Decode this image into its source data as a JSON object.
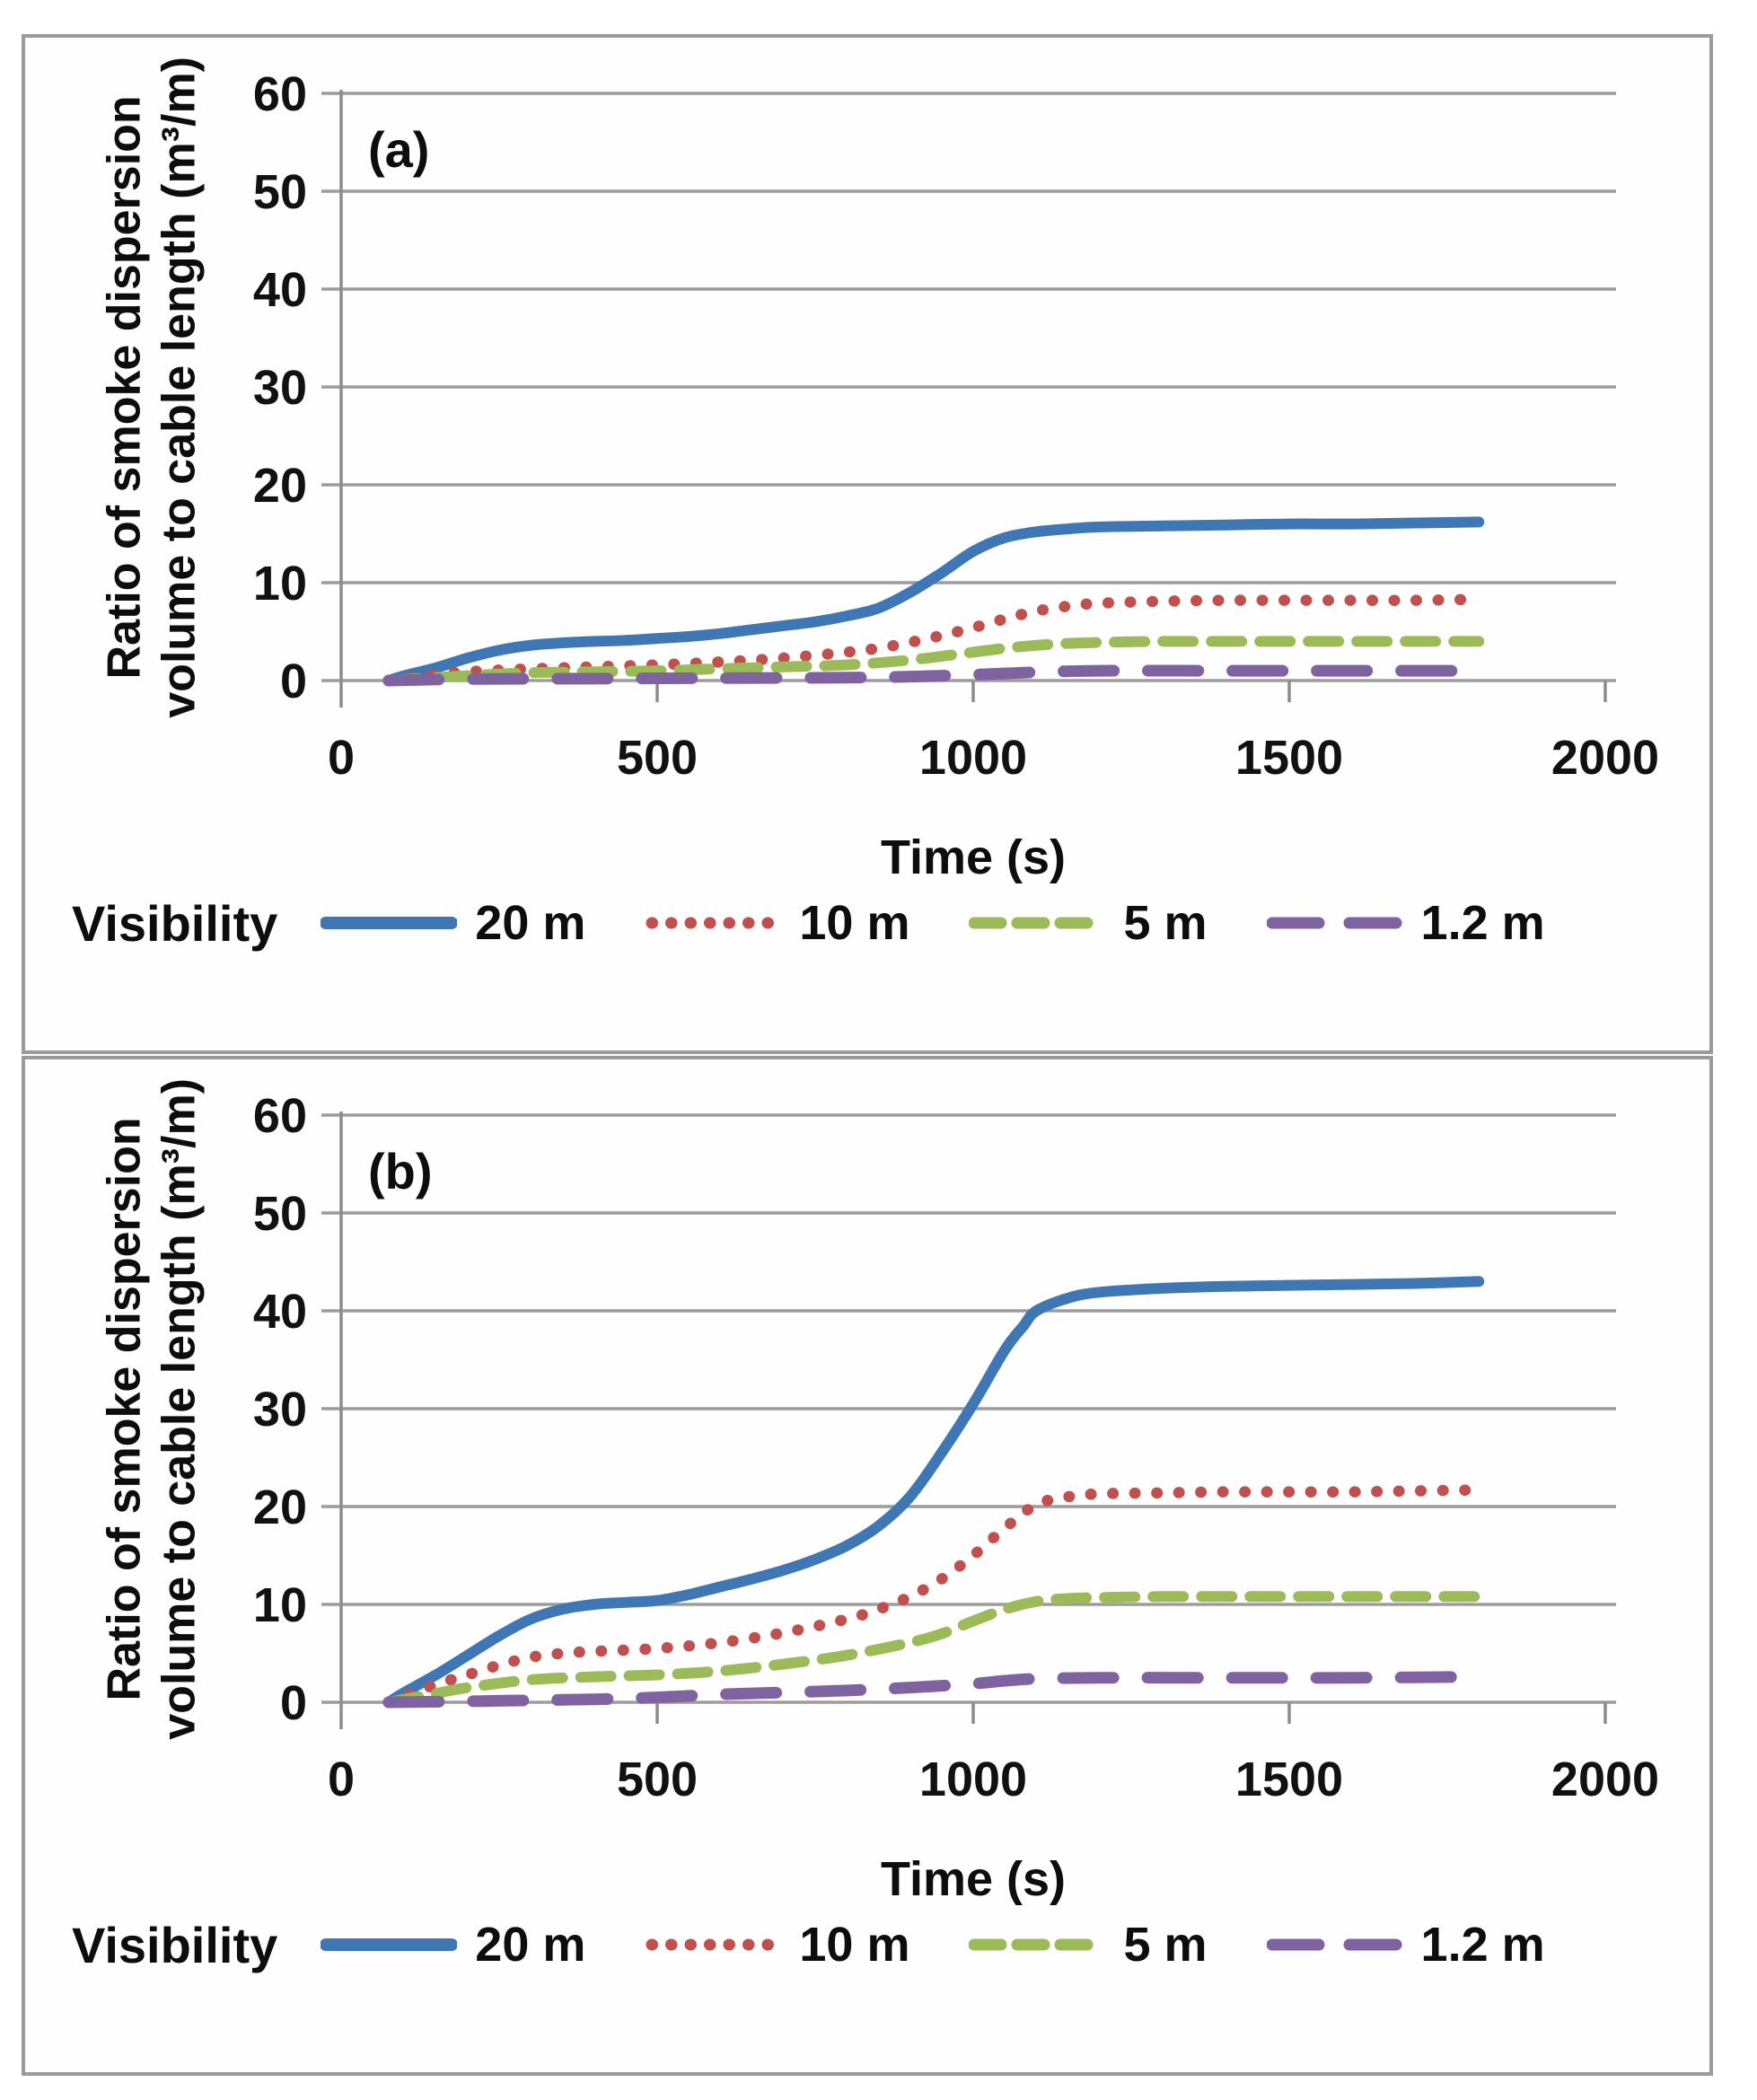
{
  "colors": {
    "grid": "#9c9c9c",
    "axis": "#8c8c8c",
    "text": "#111111",
    "panel_border": "#9a9a9a",
    "series_blue": "#3f76b4",
    "series_red": "#c0504d",
    "series_green": "#9bbb59",
    "series_purple": "#7f63a1"
  },
  "chart_data": [
    {
      "type": "line",
      "title": "(a)",
      "xlabel": "Time (s)",
      "ylabel_lines": [
        "Ratio of smoke dispersion",
        "volume to cable length (m³/m)"
      ],
      "legend_title": "Visibility",
      "legend_position": "bottom",
      "grid": "horizontal",
      "xlim": [
        0,
        2000
      ],
      "ylim": [
        0,
        60
      ],
      "xticks": [
        0,
        500,
        1000,
        1500,
        2000
      ],
      "yticks": [
        0,
        10,
        20,
        30,
        40,
        50,
        60
      ],
      "series": [
        {
          "name": "20 m",
          "color": "#3f76b4",
          "dash": "solid",
          "points": [
            [
              75,
              0
            ],
            [
              100,
              0.5
            ],
            [
              150,
              1.3
            ],
            [
              200,
              2.3
            ],
            [
              250,
              3.1
            ],
            [
              300,
              3.6
            ],
            [
              350,
              3.85
            ],
            [
              400,
              4.0
            ],
            [
              450,
              4.1
            ],
            [
              500,
              4.3
            ],
            [
              550,
              4.5
            ],
            [
              600,
              4.8
            ],
            [
              650,
              5.2
            ],
            [
              700,
              5.6
            ],
            [
              750,
              6.0
            ],
            [
              800,
              6.6
            ],
            [
              850,
              7.4
            ],
            [
              900,
              9.0
            ],
            [
              950,
              11.0
            ],
            [
              1000,
              13.2
            ],
            [
              1050,
              14.6
            ],
            [
              1100,
              15.2
            ],
            [
              1150,
              15.5
            ],
            [
              1200,
              15.7
            ],
            [
              1300,
              15.8
            ],
            [
              1400,
              15.9
            ],
            [
              1500,
              16.0
            ],
            [
              1600,
              16.0
            ],
            [
              1700,
              16.1
            ],
            [
              1800,
              16.2
            ]
          ]
        },
        {
          "name": "10 m",
          "color": "#c0504d",
          "dash": "dotted",
          "points": [
            [
              75,
              0
            ],
            [
              150,
              0.6
            ],
            [
              200,
              0.9
            ],
            [
              300,
              1.2
            ],
            [
              400,
              1.4
            ],
            [
              500,
              1.6
            ],
            [
              600,
              1.9
            ],
            [
              700,
              2.3
            ],
            [
              800,
              2.9
            ],
            [
              850,
              3.3
            ],
            [
              900,
              3.9
            ],
            [
              950,
              4.6
            ],
            [
              1000,
              5.4
            ],
            [
              1050,
              6.3
            ],
            [
              1100,
              7.1
            ],
            [
              1150,
              7.6
            ],
            [
              1200,
              7.9
            ],
            [
              1300,
              8.1
            ],
            [
              1400,
              8.2
            ],
            [
              1500,
              8.2
            ],
            [
              1600,
              8.2
            ],
            [
              1700,
              8.2
            ],
            [
              1800,
              8.3
            ]
          ]
        },
        {
          "name": "5 m",
          "color": "#9bbb59",
          "dash": "dashed",
          "points": [
            [
              75,
              0
            ],
            [
              200,
              0.5
            ],
            [
              300,
              0.8
            ],
            [
              400,
              0.9
            ],
            [
              500,
              1.0
            ],
            [
              600,
              1.2
            ],
            [
              700,
              1.4
            ],
            [
              800,
              1.6
            ],
            [
              900,
              2.1
            ],
            [
              1000,
              2.9
            ],
            [
              1050,
              3.3
            ],
            [
              1100,
              3.6
            ],
            [
              1150,
              3.8
            ],
            [
              1200,
              3.9
            ],
            [
              1300,
              4.0
            ],
            [
              1400,
              4.0
            ],
            [
              1500,
              4.0
            ],
            [
              1600,
              4.0
            ],
            [
              1700,
              4.0
            ],
            [
              1800,
              4.0
            ]
          ]
        },
        {
          "name": "1.2 m",
          "color": "#7f63a1",
          "dash": "longdash",
          "points": [
            [
              75,
              0
            ],
            [
              200,
              0.15
            ],
            [
              400,
              0.2
            ],
            [
              600,
              0.25
            ],
            [
              800,
              0.3
            ],
            [
              900,
              0.4
            ],
            [
              1000,
              0.6
            ],
            [
              1100,
              0.85
            ],
            [
              1200,
              1.0
            ],
            [
              1400,
              1.0
            ],
            [
              1600,
              1.0
            ],
            [
              1800,
              1.0
            ]
          ]
        }
      ]
    },
    {
      "type": "line",
      "title": "(b)",
      "xlabel": "Time (s)",
      "ylabel_lines": [
        "Ratio of smoke dispersion",
        "volume to cable length (m³/m)"
      ],
      "legend_title": "Visibility",
      "legend_position": "bottom",
      "grid": "horizontal",
      "xlim": [
        0,
        2000
      ],
      "ylim": [
        0,
        60
      ],
      "xticks": [
        0,
        500,
        1000,
        1500,
        2000
      ],
      "yticks": [
        0,
        10,
        20,
        30,
        40,
        50,
        60
      ],
      "series": [
        {
          "name": "20 m",
          "color": "#3f76b4",
          "dash": "solid",
          "points": [
            [
              75,
              0
            ],
            [
              100,
              1.0
            ],
            [
              150,
              2.8
            ],
            [
              200,
              4.8
            ],
            [
              250,
              6.8
            ],
            [
              300,
              8.5
            ],
            [
              350,
              9.5
            ],
            [
              400,
              10.0
            ],
            [
              450,
              10.2
            ],
            [
              500,
              10.4
            ],
            [
              550,
              11.0
            ],
            [
              600,
              11.8
            ],
            [
              650,
              12.6
            ],
            [
              700,
              13.5
            ],
            [
              750,
              14.6
            ],
            [
              800,
              16.0
            ],
            [
              850,
              18.0
            ],
            [
              900,
              21.0
            ],
            [
              950,
              25.5
            ],
            [
              1000,
              30.5
            ],
            [
              1050,
              36.0
            ],
            [
              1080,
              38.5
            ],
            [
              1100,
              40.0
            ],
            [
              1150,
              41.3
            ],
            [
              1200,
              41.9
            ],
            [
              1300,
              42.3
            ],
            [
              1400,
              42.5
            ],
            [
              1500,
              42.6
            ],
            [
              1600,
              42.7
            ],
            [
              1700,
              42.8
            ],
            [
              1800,
              43.0
            ]
          ]
        },
        {
          "name": "10 m",
          "color": "#c0504d",
          "dash": "dotted",
          "points": [
            [
              75,
              0
            ],
            [
              150,
              1.8
            ],
            [
              200,
              2.8
            ],
            [
              250,
              3.8
            ],
            [
              300,
              4.6
            ],
            [
              350,
              5.0
            ],
            [
              400,
              5.2
            ],
            [
              500,
              5.5
            ],
            [
              600,
              6.1
            ],
            [
              700,
              7.1
            ],
            [
              800,
              8.5
            ],
            [
              850,
              9.5
            ],
            [
              900,
              10.8
            ],
            [
              950,
              12.6
            ],
            [
              1000,
              15.0
            ],
            [
              1050,
              17.8
            ],
            [
              1100,
              20.2
            ],
            [
              1150,
              21.0
            ],
            [
              1200,
              21.3
            ],
            [
              1300,
              21.4
            ],
            [
              1400,
              21.5
            ],
            [
              1500,
              21.5
            ],
            [
              1600,
              21.5
            ],
            [
              1700,
              21.6
            ],
            [
              1800,
              21.7
            ]
          ]
        },
        {
          "name": "5 m",
          "color": "#9bbb59",
          "dash": "dashed",
          "points": [
            [
              75,
              0
            ],
            [
              150,
              0.9
            ],
            [
              200,
              1.5
            ],
            [
              300,
              2.3
            ],
            [
              400,
              2.6
            ],
            [
              500,
              2.8
            ],
            [
              600,
              3.2
            ],
            [
              700,
              3.9
            ],
            [
              800,
              4.8
            ],
            [
              900,
              6.1
            ],
            [
              950,
              7.0
            ],
            [
              1000,
              8.3
            ],
            [
              1050,
              9.5
            ],
            [
              1100,
              10.3
            ],
            [
              1150,
              10.6
            ],
            [
              1200,
              10.7
            ],
            [
              1300,
              10.8
            ],
            [
              1400,
              10.8
            ],
            [
              1500,
              10.8
            ],
            [
              1600,
              10.8
            ],
            [
              1700,
              10.8
            ],
            [
              1800,
              10.8
            ]
          ]
        },
        {
          "name": "1.2 m",
          "color": "#7f63a1",
          "dash": "longdash",
          "points": [
            [
              75,
              0
            ],
            [
              200,
              0.1
            ],
            [
              300,
              0.2
            ],
            [
              400,
              0.3
            ],
            [
              500,
              0.5
            ],
            [
              600,
              0.8
            ],
            [
              700,
              1.0
            ],
            [
              800,
              1.2
            ],
            [
              900,
              1.5
            ],
            [
              1000,
              1.9
            ],
            [
              1050,
              2.2
            ],
            [
              1100,
              2.4
            ],
            [
              1200,
              2.5
            ],
            [
              1400,
              2.5
            ],
            [
              1600,
              2.5
            ],
            [
              1800,
              2.6
            ]
          ]
        }
      ]
    }
  ]
}
